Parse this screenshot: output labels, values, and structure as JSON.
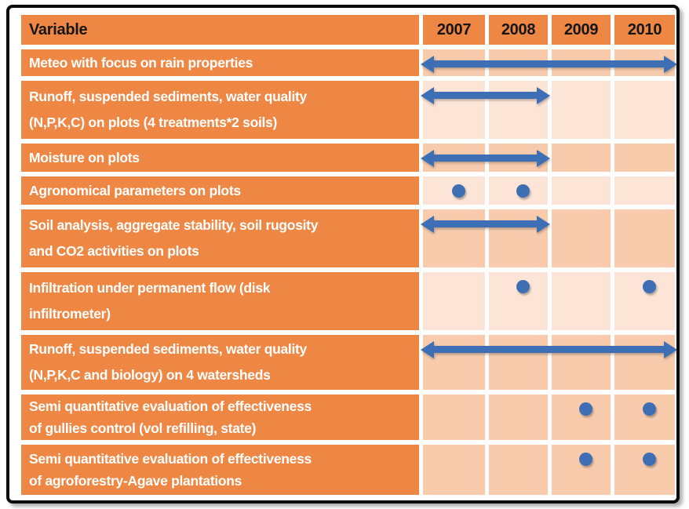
{
  "palette": {
    "orange": "#EE8743",
    "tint_light": "#FCE4D6",
    "tint_dark": "#F8CBAD",
    "blue": "#3E6FB5",
    "header_text": "#161616",
    "label_text": "#FFFFFF",
    "frame_border": "#0B0B0B"
  },
  "chart_data": {
    "type": "table",
    "title": "",
    "columns": [
      "Variable",
      "2007",
      "2008",
      "2009",
      "2010"
    ],
    "marker_kinds": {
      "arrow": "continuous double-headed period arrow",
      "dots": "discrete yearly measurement dot"
    },
    "rows": [
      {
        "label_lines": [
          "Meteo with focus on rain properties"
        ],
        "tint": "tint_dark",
        "marker": {
          "kind": "arrow",
          "from": "2007",
          "to": "2010"
        }
      },
      {
        "label_lines": [
          "Runoff, suspended sediments, water quality",
          "(N,P,K,C) on plots (4 treatments*2 soils)"
        ],
        "tint": "tint_light",
        "marker": {
          "kind": "arrow",
          "from": "2007",
          "to": "2008"
        }
      },
      {
        "label_lines": [
          "Moisture on plots"
        ],
        "tint": "tint_dark",
        "marker": {
          "kind": "arrow",
          "from": "2007",
          "to": "2008"
        }
      },
      {
        "label_lines": [
          "Agronomical parameters on plots"
        ],
        "tint": "tint_light",
        "marker": {
          "kind": "dots",
          "years": [
            "2007",
            "2008"
          ]
        }
      },
      {
        "label_lines": [
          "Soil analysis, aggregate stability, soil rugosity",
          "and CO2 activities on plots"
        ],
        "tint": "tint_dark",
        "marker": {
          "kind": "arrow",
          "from": "2007",
          "to": "2008"
        }
      },
      {
        "label_lines": [
          "Infiltration under permanent flow (disk",
          "infiltrometer)"
        ],
        "tint": "tint_light",
        "marker": {
          "kind": "dots",
          "years": [
            "2008",
            "2010"
          ]
        }
      },
      {
        "label_lines": [
          "Runoff, suspended sediments, water quality",
          "(N,P,K,C and biology) on 4 watersheds"
        ],
        "tint": "tint_dark",
        "marker": {
          "kind": "arrow",
          "from": "2007",
          "to": "2010"
        }
      },
      {
        "label_lines": [
          "Semi quantitative evaluation of effectiveness",
          "of gullies control (vol refilling, state)"
        ],
        "tint": "tint_dark",
        "marker": {
          "kind": "dots",
          "years": [
            "2009",
            "2010"
          ]
        }
      },
      {
        "label_lines": [
          "Semi quantitative evaluation of effectiveness",
          "of agroforestry-Agave plantations"
        ],
        "tint": "tint_dark",
        "marker": {
          "kind": "dots",
          "years": [
            "2009",
            "2010"
          ]
        }
      }
    ]
  }
}
